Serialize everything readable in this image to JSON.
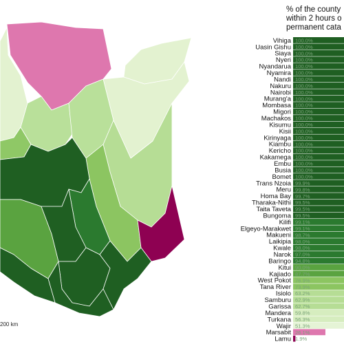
{
  "title_lines": [
    "% of the county",
    "within 2 hours o",
    "permanent cata"
  ],
  "scale_label": "200 km",
  "colors": {
    "c100": "#1f5f22",
    "c95": "#2b7a2f",
    "c85": "#5aa340",
    "c75": "#8cc561",
    "c62": "#b6dd95",
    "c55": "#d6edbf",
    "c51": "#e5f4d6",
    "c26": "#de77ae",
    "c2": "#8e0152",
    "land_light": "#e3f2d0",
    "land_mid": "#b9e09a",
    "land_med": "#8fc866",
    "land_dark": "#1f5f22"
  },
  "chart_data": {
    "type": "bar",
    "title": "% of the county within 2 hours o permanent cata",
    "orientation": "horizontal",
    "categories": [
      "Vihiga",
      "Uasin Gishu",
      "Siaya",
      "Nyeri",
      "Nyandarua",
      "Nyamira",
      "Nandi",
      "Nakuru",
      "Nairobi",
      "Murang'a",
      "Mombasa",
      "Migori",
      "Machakos",
      "Kisumu",
      "Kisii",
      "Kirinyaga",
      "Kiambu",
      "Kericho",
      "Kakamega",
      "Embu",
      "Busia",
      "Bomet",
      "Trans Nzoia",
      "Meru",
      "Homa Bay",
      "Tharaka-Nithi",
      "Taita Taveta",
      "Bungoma",
      "Kilifi",
      "Elgeyo-Marakwet",
      "Makueni",
      "Laikipia",
      "Kwale",
      "Narok",
      "Baringo",
      "Kitui",
      "Kajiado",
      "West Pokot",
      "Tana River",
      "Isiolo",
      "Samburu",
      "Garissa",
      "Mandera",
      "Turkana",
      "Wajir",
      "Marsabit",
      "Lamu"
    ],
    "values": [
      100.0,
      100.0,
      100.0,
      100.0,
      100.0,
      100.0,
      100.0,
      100.0,
      100.0,
      100.0,
      100.0,
      100.0,
      100.0,
      100.0,
      100.0,
      100.0,
      100.0,
      100.0,
      100.0,
      100.0,
      100.0,
      100.0,
      99.9,
      99.8,
      99.7,
      99.5,
      99.5,
      99.5,
      99.1,
      99.1,
      98.7,
      98.0,
      98.0,
      97.0,
      94.8,
      90.0,
      87.7,
      76.9,
      73.9,
      63.2,
      62.9,
      62.7,
      59.8,
      56.3,
      51.3,
      26.1,
      1.9
    ],
    "value_labels": [
      "100.0%",
      "100.0%",
      "100.0%",
      "100.0%",
      "100.0%",
      "100.0%",
      "100.0%",
      "100.0%",
      "100.0%",
      "100.0%",
      "100.0%",
      "100.0%",
      "100.0%",
      "100.0%",
      "100.0%",
      "100.0%",
      "100.0%",
      "100.0%",
      "100.0%",
      "100.0%",
      "100.0%",
      "100.0%",
      "99.9%",
      "99.8%",
      "99.7%",
      "99.5%",
      "99.5%",
      "99.5%",
      "99.1%",
      "99.1%",
      "98.7%",
      "98.0%",
      "98.0%",
      "97.0%",
      "94.8%",
      "90.0%",
      "87.7%",
      "76.9%",
      "73.9%",
      "63.2%",
      "62.9%",
      "62.7%",
      "59.8%",
      "56.3%",
      "51.3%",
      "26.1%",
      "1.9%"
    ],
    "xlim": [
      0,
      100
    ]
  }
}
